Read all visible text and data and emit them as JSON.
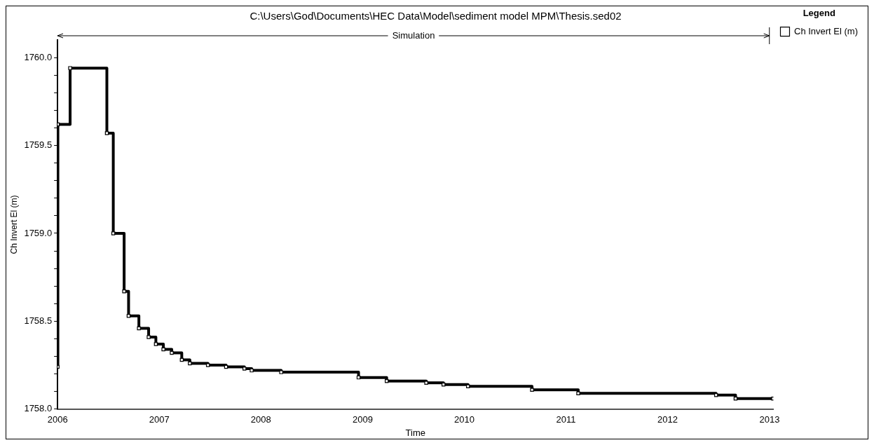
{
  "chart_data": {
    "type": "step",
    "title": "C:\\Users\\God\\Documents\\HEC Data\\Model\\sediment model MPM\\Thesis.sed02",
    "xlabel": "Time",
    "ylabel": "Ch Invert El (m)",
    "legend_title": "Legend",
    "legend": "top right",
    "marker": "square",
    "xlim": [
      "2006-01-01",
      "2013-01-15"
    ],
    "xticks": [
      "2006",
      "2007",
      "2008",
      "2009",
      "2010",
      "2011",
      "2012",
      "2013"
    ],
    "ylim": [
      1758,
      1760.1
    ],
    "yticks": [
      {
        "value": 1758,
        "label": "1758.0"
      },
      {
        "value": 1758.1,
        "label": null
      },
      {
        "value": 1758.2,
        "label": null
      },
      {
        "value": 1758.3,
        "label": null
      },
      {
        "value": 1758.4,
        "label": null
      },
      {
        "value": 1758.5,
        "label": "1758.5"
      },
      {
        "value": 1758.6,
        "label": null
      },
      {
        "value": 1758.7,
        "label": null
      },
      {
        "value": 1758.8,
        "label": null
      },
      {
        "value": 1758.9,
        "label": null
      },
      {
        "value": 1759,
        "label": "1759.0"
      },
      {
        "value": 1759.1,
        "label": null
      },
      {
        "value": 1759.2,
        "label": null
      },
      {
        "value": 1759.3,
        "label": null
      },
      {
        "value": 1759.4,
        "label": null
      },
      {
        "value": 1759.5,
        "label": "1759.5"
      },
      {
        "value": 1759.6,
        "label": null
      },
      {
        "value": 1759.7,
        "label": null
      },
      {
        "value": 1759.8,
        "label": null
      },
      {
        "value": 1759.9,
        "label": null
      },
      {
        "value": 1760,
        "label": "1760.0"
      }
    ],
    "annotations": [
      "Simulation"
    ],
    "x": [
      "2006-01-01",
      "2006-01-02",
      "2006-02-15",
      "2006-06-27",
      "2006-07-20",
      "2006-08-28",
      "2006-09-13",
      "2006-10-20",
      "2006-11-24",
      "2006-12-20",
      "2007-01-16",
      "2007-02-15",
      "2007-03-23",
      "2007-04-21",
      "2007-06-25",
      "2007-08-29",
      "2007-11-03",
      "2007-11-29",
      "2008-03-14",
      "2008-12-17",
      "2009-03-28",
      "2009-08-17",
      "2009-10-18",
      "2010-01-14",
      "2010-09-01",
      "2011-02-14",
      "2012-06-23",
      "2012-09-01",
      "2013-01-14"
    ],
    "series": [
      {
        "name": "Ch Invert El (m)",
        "color": "#000000",
        "values": [
          1758.24,
          1759.62,
          1759.94,
          1759.57,
          1759.0,
          1758.67,
          1758.53,
          1758.46,
          1758.41,
          1758.37,
          1758.34,
          1758.32,
          1758.28,
          1758.26,
          1758.25,
          1758.24,
          1758.23,
          1758.22,
          1758.21,
          1758.18,
          1758.16,
          1758.15,
          1758.14,
          1758.13,
          1758.11,
          1758.09,
          1758.08,
          1758.06,
          1758.06
        ]
      }
    ]
  }
}
